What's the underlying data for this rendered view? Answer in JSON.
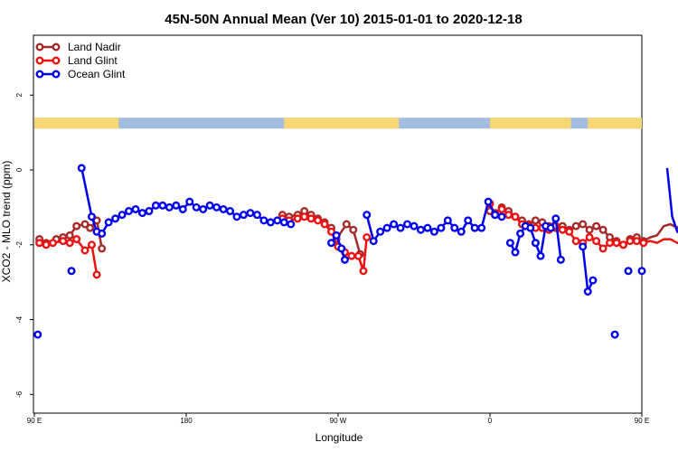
{
  "chart_data": {
    "type": "line",
    "title": "45N-50N Annual Mean (Ver 10)   2015-01-01 to 2020-12-18",
    "xlabel": "Longitude",
    "ylabel": "XCO2 - MLO trend (ppm)",
    "xlim": [
      90,
      450
    ],
    "ylim": [
      -6.5,
      3.6
    ],
    "x_ticks": [
      {
        "value": 90,
        "label": "90 E"
      },
      {
        "value": 180,
        "label": "180"
      },
      {
        "value": 270,
        "label": "90 W"
      },
      {
        "value": 360,
        "label": "0"
      },
      {
        "value": 450,
        "label": "90 E"
      },
      {
        "value": 540,
        "label": "180"
      }
    ],
    "y_ticks": [
      {
        "value": 2,
        "label": "2"
      },
      {
        "value": 0,
        "label": "0"
      },
      {
        "value": -2,
        "label": "-2"
      },
      {
        "value": -4,
        "label": "-4"
      },
      {
        "value": -6,
        "label": "-6"
      }
    ],
    "legend": {
      "position": "top-left"
    },
    "land_mask": {
      "y": 1.25,
      "land_color": "#f7d774",
      "ocean_color": "#a3bde0",
      "land_ranges": [
        [
          90,
          140
        ],
        [
          238,
          306
        ],
        [
          360,
          408
        ],
        [
          418,
          500
        ]
      ]
    },
    "series": [
      {
        "name": "Land Nadir",
        "color": "#a52a2a",
        "segments": [
          [
            [
              93,
              -1.85
            ],
            [
              97,
              -1.95
            ],
            [
              103,
              -1.85
            ],
            [
              107,
              -1.8
            ],
            [
              111,
              -1.75
            ],
            [
              115,
              -1.5
            ],
            [
              120,
              -1.45
            ],
            [
              123,
              -1.55
            ],
            [
              127,
              -1.35
            ],
            [
              130,
              -2.1
            ]
          ],
          [
            [
              237,
              -1.2
            ],
            [
              241,
              -1.25
            ],
            [
              246,
              -1.2
            ],
            [
              250,
              -1.1
            ],
            [
              254,
              -1.2
            ],
            [
              258,
              -1.3
            ],
            [
              262,
              -1.4
            ],
            [
              266,
              -1.55
            ],
            [
              269,
              -1.85
            ],
            [
              275,
              -1.45
            ],
            [
              279,
              -1.6
            ],
            [
              283,
              -2.25
            ]
          ],
          [
            [
              360,
              -1.1
            ],
            [
              363,
              -1.15
            ],
            [
              367,
              -1.0
            ],
            [
              371,
              -1.1
            ],
            [
              375,
              -1.25
            ],
            [
              379,
              -1.35
            ],
            [
              383,
              -1.45
            ],
            [
              387,
              -1.35
            ],
            [
              391,
              -1.4
            ],
            [
              395,
              -1.5
            ],
            [
              399,
              -1.55
            ],
            [
              403,
              -1.5
            ],
            [
              407,
              -1.6
            ],
            [
              411,
              -1.5
            ],
            [
              415,
              -1.45
            ],
            [
              419,
              -1.6
            ],
            [
              423,
              -1.5
            ],
            [
              427,
              -1.6
            ],
            [
              431,
              -1.8
            ],
            [
              435,
              -1.9
            ],
            [
              439,
              -2.0
            ],
            [
              443,
              -1.85
            ],
            [
              447,
              -1.8
            ],
            [
              451,
              -1.9
            ],
            [
              455,
              -1.8
            ],
            [
              459,
              -1.75
            ],
            [
              463,
              -1.5
            ],
            [
              467,
              -1.45
            ],
            [
              471,
              -1.55
            ],
            [
              475,
              -1.35
            ],
            [
              478,
              -2.1
            ]
          ]
        ]
      },
      {
        "name": "Land Glint",
        "color": "#ee1111",
        "segments": [
          [
            [
              93,
              -1.95
            ],
            [
              97,
              -2.0
            ],
            [
              101,
              -1.95
            ],
            [
              107,
              -1.9
            ],
            [
              111,
              -1.95
            ],
            [
              115,
              -1.85
            ],
            [
              120,
              -2.15
            ],
            [
              124,
              -2.0
            ],
            [
              127,
              -2.8
            ]
          ],
          [
            [
              237,
              -1.3
            ],
            [
              241,
              -1.35
            ],
            [
              246,
              -1.3
            ],
            [
              250,
              -1.25
            ],
            [
              254,
              -1.3
            ],
            [
              258,
              -1.35
            ],
            [
              262,
              -1.45
            ],
            [
              266,
              -1.65
            ],
            [
              270,
              -2.05
            ],
            [
              274,
              -2.2
            ],
            [
              278,
              -2.3
            ],
            [
              282,
              -2.3
            ],
            [
              285,
              -2.7
            ],
            [
              287,
              -1.8
            ]
          ],
          [
            [
              360,
              -0.9
            ],
            [
              363,
              -1.2
            ],
            [
              367,
              -1.05
            ],
            [
              371,
              -1.2
            ],
            [
              375,
              -1.25
            ],
            [
              379,
              -1.45
            ],
            [
              383,
              -1.5
            ],
            [
              387,
              -1.55
            ],
            [
              391,
              -1.55
            ],
            [
              395,
              -1.6
            ],
            [
              399,
              -1.5
            ],
            [
              403,
              -1.6
            ],
            [
              407,
              -1.65
            ],
            [
              411,
              -1.9
            ],
            [
              415,
              -1.95
            ],
            [
              419,
              -1.8
            ],
            [
              423,
              -1.9
            ],
            [
              427,
              -2.1
            ],
            [
              431,
              -1.95
            ],
            [
              435,
              -1.95
            ],
            [
              439,
              -2.0
            ],
            [
              443,
              -1.9
            ],
            [
              447,
              -1.9
            ],
            [
              451,
              -1.95
            ],
            [
              455,
              -1.9
            ],
            [
              459,
              -1.95
            ],
            [
              463,
              -1.85
            ],
            [
              467,
              -1.85
            ],
            [
              471,
              -1.95
            ],
            [
              475,
              -2.0
            ],
            [
              478,
              -2.8
            ]
          ]
        ]
      },
      {
        "name": "Ocean Glint",
        "color": "#0000ee",
        "segments": [
          [
            [
              118,
              0.05
            ],
            [
              124,
              -1.25
            ],
            [
              127,
              -1.65
            ],
            [
              130,
              -1.7
            ],
            [
              134,
              -1.4
            ],
            [
              138,
              -1.3
            ],
            [
              142,
              -1.2
            ],
            [
              146,
              -1.1
            ],
            [
              150,
              -1.05
            ],
            [
              154,
              -1.15
            ],
            [
              158,
              -1.1
            ],
            [
              162,
              -0.95
            ],
            [
              166,
              -0.95
            ],
            [
              170,
              -1.0
            ],
            [
              174,
              -0.95
            ],
            [
              178,
              -1.05
            ],
            [
              182,
              -0.85
            ],
            [
              186,
              -1.0
            ],
            [
              190,
              -1.05
            ],
            [
              194,
              -0.95
            ],
            [
              198,
              -1.0
            ],
            [
              202,
              -1.05
            ],
            [
              206,
              -1.1
            ],
            [
              210,
              -1.25
            ],
            [
              214,
              -1.2
            ],
            [
              218,
              -1.15
            ],
            [
              222,
              -1.2
            ],
            [
              226,
              -1.35
            ],
            [
              230,
              -1.4
            ],
            [
              234,
              -1.35
            ],
            [
              238,
              -1.4
            ],
            [
              242,
              -1.45
            ]
          ],
          [
            [
              266,
              -1.95
            ],
            [
              269,
              -1.75
            ],
            [
              272,
              -2.1
            ],
            [
              274,
              -2.4
            ]
          ],
          [
            [
              287,
              -1.2
            ],
            [
              291,
              -1.9
            ],
            [
              295,
              -1.65
            ],
            [
              299,
              -1.55
            ],
            [
              303,
              -1.45
            ],
            [
              307,
              -1.55
            ],
            [
              311,
              -1.45
            ],
            [
              315,
              -1.5
            ],
            [
              319,
              -1.6
            ],
            [
              323,
              -1.55
            ],
            [
              327,
              -1.65
            ],
            [
              331,
              -1.55
            ],
            [
              335,
              -1.35
            ],
            [
              339,
              -1.55
            ],
            [
              343,
              -1.65
            ],
            [
              347,
              -1.35
            ],
            [
              351,
              -1.55
            ],
            [
              355,
              -1.55
            ],
            [
              359,
              -0.85
            ],
            [
              363,
              -1.2
            ],
            [
              367,
              -1.25
            ]
          ],
          [
            [
              372,
              -1.95
            ],
            [
              375,
              -2.2
            ],
            [
              378,
              -1.7
            ],
            [
              381,
              -1.5
            ],
            [
              384,
              -1.55
            ],
            [
              387,
              -1.95
            ],
            [
              390,
              -2.3
            ],
            [
              393,
              -1.5
            ],
            [
              396,
              -1.55
            ],
            [
              399,
              -1.3
            ],
            [
              402,
              -2.4
            ]
          ],
          [
            [
              415,
              -2.05
            ],
            [
              418,
              -3.25
            ],
            [
              421,
              -2.95
            ]
          ],
          [
            [
              465,
              0.05
            ],
            [
              468,
              -1.25
            ],
            [
              471,
              -1.65
            ],
            [
              474,
              -1.7
            ],
            [
              478,
              -1.4
            ],
            [
              482,
              -1.3
            ],
            [
              486,
              -1.2
            ],
            [
              490,
              -1.1
            ],
            [
              494,
              -1.05
            ],
            [
              498,
              -1.15
            ]
          ]
        ],
        "isolated_points": [
          [
            92,
            -4.4
          ],
          [
            112,
            -2.7
          ],
          [
            434,
            -4.4
          ],
          [
            450,
            -2.7
          ],
          [
            442,
            -2.7
          ]
        ]
      }
    ]
  }
}
